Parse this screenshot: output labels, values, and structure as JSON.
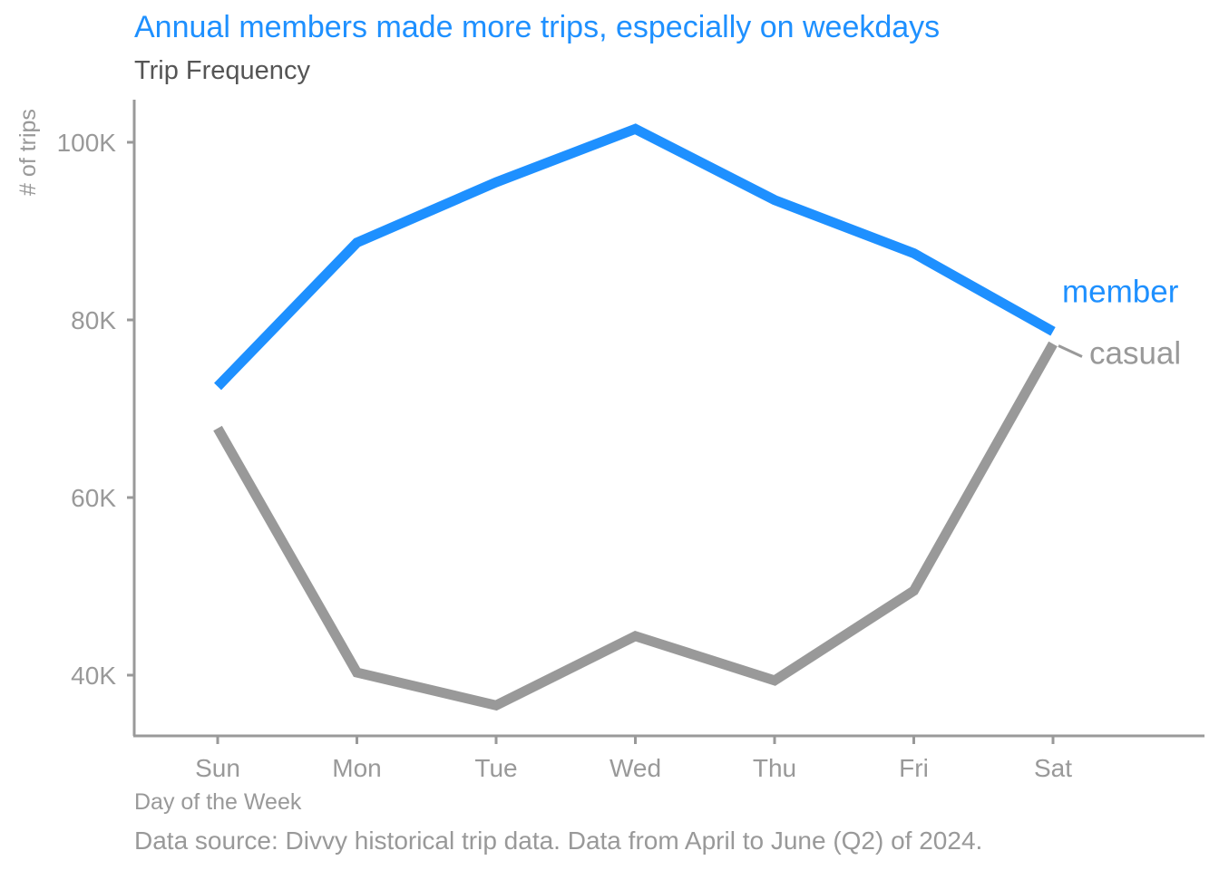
{
  "chart_data": {
    "type": "line",
    "title": "Annual members made more trips, especially on weekdays",
    "subtitle": "Trip Frequency",
    "xlabel": "Day of the Week",
    "ylabel": "# of trips",
    "caption": "Data source: Divvy historical trip data. Data from April to June (Q2) of 2024.",
    "categories": [
      "Sun",
      "Mon",
      "Tue",
      "Wed",
      "Thu",
      "Fri",
      "Sat"
    ],
    "ylim": [
      33000,
      105000
    ],
    "yticks": [
      40000,
      60000,
      80000,
      100000
    ],
    "ytick_labels": [
      "40K",
      "60K",
      "80K",
      "100K"
    ],
    "grid": false,
    "legend": "direct labels at right end of lines",
    "series": [
      {
        "name": "member",
        "color": "#1E90FF",
        "values": [
          72500,
          88700,
          95500,
          101500,
          93500,
          87500,
          78700
        ]
      },
      {
        "name": "casual",
        "color": "#999999",
        "values": [
          67800,
          40300,
          36600,
          44400,
          39400,
          49500,
          77300
        ]
      }
    ],
    "colors": {
      "title": "#1E90FF",
      "subtitle": "#555555",
      "axis": "#999999",
      "text_muted": "#999999"
    }
  }
}
